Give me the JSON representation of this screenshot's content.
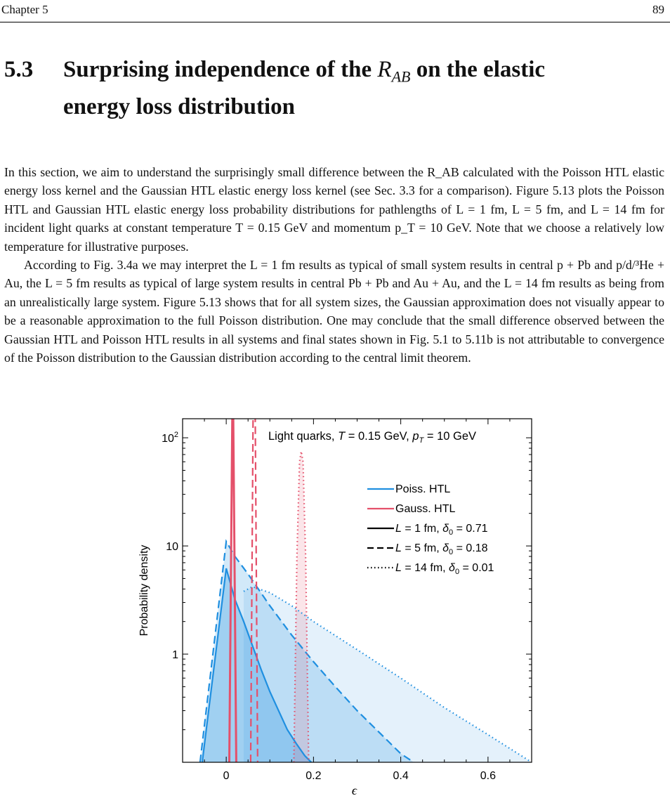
{
  "header": {
    "chapter": "Chapter 5",
    "page": "89"
  },
  "section": {
    "number": "5.3",
    "title_line1_a": "Surprising independence of the",
    "title_line1_sub": "AB",
    "title_line1_b": "on the elastic",
    "title_line2": "energy loss distribution"
  },
  "paragraphs": [
    "In this section, we aim to understand the surprisingly small difference between the R_AB calculated with the Poisson HTL elastic energy loss kernel and the Gaussian HTL elastic energy loss kernel (see Sec. 3.3 for a comparison). Figure 5.13 plots the Poisson HTL and Gaussian HTL elastic energy loss probability distributions for pathlengths of L = 1 fm, L = 5 fm, and L = 14 fm for incident light quarks at constant temperature T = 0.15 GeV and momentum p_T = 10 GeV. Note that we choose a relatively low temperature for illustrative purposes.",
    "According to Fig. 3.4a we may interpret the L = 1 fm results as typical of small system results in central p + Pb and p/d/³He + Au, the L = 5 fm results as typical of large system results in central Pb + Pb and Au + Au, and the L = 14 fm results as being from an unrealistically large system. Figure 5.13 shows that for all system sizes, the Gaussian approximation does not visually appear to be a reasonable approximation to the full Poisson distribution. One may conclude that the small difference observed between the Gaussian HTL and Poisson HTL results in all systems and final states shown in Fig. 5.1 to 5.11b is not attributable to convergence of the Poisson distribution to the Gaussian distribution according to the central limit theorem."
  ],
  "chart_data": {
    "type": "line",
    "title": "Light quarks, T = 0.15 GeV, p_T = 10 GeV",
    "title_parts": {
      "a": "Light quarks, ",
      "T": "T",
      "b": " = 0.15 GeV, ",
      "p": "p",
      "sub": "T",
      "c": " = 10 GeV"
    },
    "xlabel": "ϵ",
    "ylabel": "Probability density",
    "xlim": [
      -0.1,
      0.7
    ],
    "ylim": [
      0.1,
      150
    ],
    "yscale": "log",
    "xticks": [
      0,
      0.2,
      0.4,
      0.6
    ],
    "xtick_labels": [
      "0",
      "0.2",
      "0.4",
      "0.6"
    ],
    "yticks": [
      1,
      10,
      100
    ],
    "ytick_labels": [
      "1",
      "10",
      "10²"
    ],
    "colors": {
      "poisson": "#1f8fe0",
      "gauss": "#e4506a"
    },
    "legend": {
      "position": "right",
      "entries": [
        {
          "text": "Poiss. HTL",
          "style": "poisson"
        },
        {
          "text": "Gauss. HTL",
          "style": "gauss"
        },
        {
          "text": "L = 1 fm, δ0 = 0.71",
          "L": "1",
          "d0": "0.71",
          "dash": "solid"
        },
        {
          "text": "L = 5 fm, δ0 = 0.18",
          "L": "5",
          "d0": "0.18",
          "dash": "dashed"
        },
        {
          "text": "L = 14 fm, δ0 = 0.01",
          "L": "14",
          "d0": "0.01",
          "dash": "dotted"
        }
      ]
    },
    "series": [
      {
        "name": "Poiss. HTL, L = 1 fm",
        "dash": "solid",
        "kind": "poisson",
        "x": [
          -0.055,
          0,
          0.02,
          0.04,
          0.06,
          0.08,
          0.1,
          0.12,
          0.14,
          0.16,
          0.18,
          0.195
        ],
        "y": [
          0.1,
          6.2,
          3.2,
          2.0,
          1.2,
          0.72,
          0.45,
          0.3,
          0.2,
          0.15,
          0.115,
          0.1
        ]
      },
      {
        "name": "Poiss. HTL, L = 5 fm",
        "dash": "dashed",
        "kind": "poisson",
        "x": [
          -0.06,
          0,
          0.02,
          0.05,
          0.1,
          0.15,
          0.2,
          0.25,
          0.3,
          0.35,
          0.4,
          0.43
        ],
        "y": [
          0.1,
          11,
          8,
          5.5,
          2.8,
          1.5,
          0.85,
          0.5,
          0.3,
          0.19,
          0.12,
          0.1
        ]
      },
      {
        "name": "Poiss. HTL, L = 14 fm",
        "dash": "dotted",
        "kind": "poisson",
        "x": [
          0.04,
          0.06,
          0.1,
          0.15,
          0.2,
          0.3,
          0.4,
          0.5,
          0.6,
          0.7
        ],
        "y": [
          3.8,
          4.2,
          3.7,
          2.8,
          2.0,
          1.1,
          0.6,
          0.32,
          0.18,
          0.1
        ]
      },
      {
        "name": "Gauss. HTL, L = 1 fm",
        "dash": "solid",
        "kind": "gauss",
        "x": [
          0.007,
          0.015,
          0.023
        ],
        "y": [
          0.1,
          500,
          0.1
        ]
      },
      {
        "name": "Gauss. HTL, L = 5 fm",
        "dash": "dashed",
        "kind": "gauss",
        "x": [
          0.056,
          0.062,
          0.066,
          0.072
        ],
        "y": [
          0.1,
          300,
          300,
          0.1
        ]
      },
      {
        "name": "Gauss. HTL, L = 14 fm",
        "dash": "dotted",
        "kind": "gauss",
        "x": [
          0.155,
          0.162,
          0.168,
          0.172,
          0.176,
          0.182,
          0.189
        ],
        "y": [
          0.1,
          8,
          60,
          75,
          60,
          8,
          0.1
        ]
      }
    ]
  }
}
